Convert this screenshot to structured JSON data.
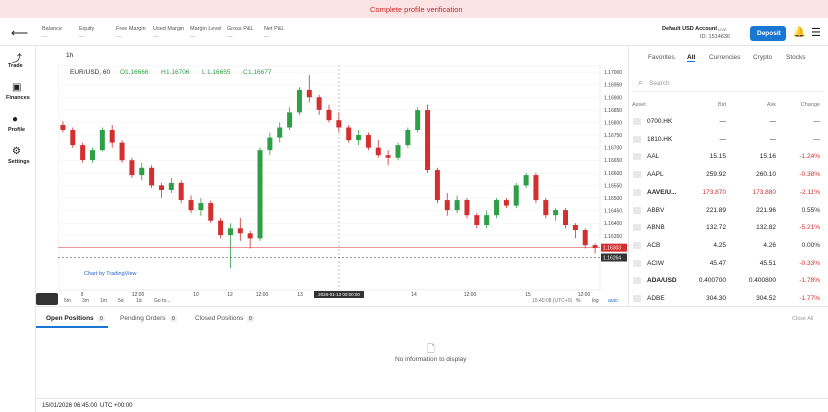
{
  "banner": {
    "text": "Complete profile verification"
  },
  "header": {
    "metrics": [
      {
        "label": "Balance",
        "value": "—"
      },
      {
        "label": "Equity",
        "value": "—"
      },
      {
        "label": "Free Margin",
        "value": "—"
      },
      {
        "label": "Used Margin",
        "value": "—"
      },
      {
        "label": "Margin Level",
        "value": "—"
      },
      {
        "label": "Gross P&L",
        "value": "—"
      },
      {
        "label": "Net P&L",
        "value": "—"
      }
    ],
    "account": {
      "name": "Default USD Account",
      "badge": "LIVE",
      "id": "ID: 1514636"
    },
    "deposit": "Deposit"
  },
  "nav": [
    {
      "label": "Trade"
    },
    {
      "label": "Finances"
    },
    {
      "label": "Profile"
    },
    {
      "label": "Settings"
    }
  ],
  "chart_data": {
    "type": "candlestick",
    "interval": "1h",
    "symbol": "EUR/USD, 60",
    "ohlc_labels": [
      "O",
      "H",
      "L",
      "C"
    ],
    "ohlc": [
      1.16666,
      1.16706,
      1.16655,
      1.16677
    ],
    "up_color": "#2e9e47",
    "down_color": "#d32f2f",
    "ylim": [
      1.16135,
      1.17028
    ],
    "yticks": [
      {
        "value": 1.17,
        "label": "1.17000"
      },
      {
        "value": 1.1695,
        "label": "1.16950"
      },
      {
        "value": 1.169,
        "label": "1.16900"
      },
      {
        "value": 1.1685,
        "label": "1.16850"
      },
      {
        "value": 1.168,
        "label": "1.16800"
      },
      {
        "value": 1.1675,
        "label": "1.16750"
      },
      {
        "value": 1.167,
        "label": "1.16700"
      },
      {
        "value": 1.1665,
        "label": "1.16650"
      },
      {
        "value": 1.166,
        "label": "1.16600"
      },
      {
        "value": 1.1655,
        "label": "1.16550"
      },
      {
        "value": 1.165,
        "label": "1.16500"
      },
      {
        "value": 1.1645,
        "label": "1.16450"
      },
      {
        "value": 1.164,
        "label": "1.16400"
      },
      {
        "value": 1.1635,
        "label": "1.16350"
      }
    ],
    "price_lines": [
      {
        "value": 1.16303,
        "color": "#d32f2f"
      },
      {
        "value": 1.16264,
        "color": "#333333"
      }
    ],
    "candles": [
      [
        1.1679,
        1.16805,
        1.1676,
        1.1677
      ],
      [
        1.1677,
        1.1678,
        1.167,
        1.1671
      ],
      [
        1.1671,
        1.1672,
        1.1664,
        1.16651
      ],
      [
        1.16651,
        1.167,
        1.1664,
        1.1669
      ],
      [
        1.1669,
        1.1678,
        1.16685,
        1.1677
      ],
      [
        1.1677,
        1.1679,
        1.167,
        1.1672
      ],
      [
        1.1672,
        1.1673,
        1.1664,
        1.1665
      ],
      [
        1.1665,
        1.1666,
        1.1658,
        1.16591
      ],
      [
        1.16591,
        1.1664,
        1.1657,
        1.1662
      ],
      [
        1.1662,
        1.1663,
        1.1654,
        1.1655
      ],
      [
        1.1655,
        1.1656,
        1.165,
        1.16532
      ],
      [
        1.16532,
        1.1658,
        1.1652,
        1.1656
      ],
      [
        1.1656,
        1.1657,
        1.1648,
        1.16492
      ],
      [
        1.16492,
        1.1651,
        1.1644,
        1.16452
      ],
      [
        1.16452,
        1.165,
        1.1643,
        1.1648
      ],
      [
        1.1648,
        1.1649,
        1.164,
        1.1641
      ],
      [
        1.1641,
        1.1642,
        1.1634,
        1.16353
      ],
      [
        1.16353,
        1.164,
        1.16222,
        1.1638
      ],
      [
        1.1638,
        1.1642,
        1.1633,
        1.1636
      ],
      [
        1.1636,
        1.1637,
        1.163,
        1.1634
      ],
      [
        1.1634,
        1.167,
        1.1633,
        1.1669
      ],
      [
        1.1669,
        1.1676,
        1.1667,
        1.1674
      ],
      [
        1.1674,
        1.168,
        1.1672,
        1.1678
      ],
      [
        1.1678,
        1.1686,
        1.1677,
        1.1684
      ],
      [
        1.1684,
        1.1694,
        1.1683,
        1.16929
      ],
      [
        1.16929,
        1.16988,
        1.1688,
        1.169
      ],
      [
        1.169,
        1.1691,
        1.1683,
        1.1685
      ],
      [
        1.1685,
        1.1687,
        1.168,
        1.16809
      ],
      [
        1.16809,
        1.1684,
        1.1676,
        1.1678
      ],
      [
        1.1678,
        1.1679,
        1.1672,
        1.1673
      ],
      [
        1.1673,
        1.1677,
        1.1671,
        1.1675
      ],
      [
        1.1675,
        1.1676,
        1.1669,
        1.167
      ],
      [
        1.167,
        1.1673,
        1.1666,
        1.1667
      ],
      [
        1.1667,
        1.1669,
        1.1663,
        1.1666
      ],
      [
        1.1666,
        1.1672,
        1.1665,
        1.1671
      ],
      [
        1.1671,
        1.1678,
        1.167,
        1.1677
      ],
      [
        1.1677,
        1.1686,
        1.1676,
        1.16849
      ],
      [
        1.16849,
        1.1687,
        1.166,
        1.16611
      ],
      [
        1.16611,
        1.1662,
        1.1648,
        1.16492
      ],
      [
        1.16492,
        1.1652,
        1.1643,
        1.16452
      ],
      [
        1.16452,
        1.1651,
        1.1644,
        1.16492
      ],
      [
        1.16492,
        1.165,
        1.1642,
        1.16432
      ],
      [
        1.16432,
        1.1644,
        1.1638,
        1.16393
      ],
      [
        1.16393,
        1.1645,
        1.1638,
        1.16432
      ],
      [
        1.16432,
        1.165,
        1.1642,
        1.16492
      ],
      [
        1.16492,
        1.165,
        1.1646,
        1.1647
      ],
      [
        1.1647,
        1.1656,
        1.1646,
        1.1655
      ],
      [
        1.1655,
        1.166,
        1.1654,
        1.16591
      ],
      [
        1.16591,
        1.166,
        1.1648,
        1.16492
      ],
      [
        1.16492,
        1.165,
        1.1642,
        1.16432
      ],
      [
        1.16432,
        1.1646,
        1.1641,
        1.16452
      ],
      [
        1.16452,
        1.1646,
        1.1638,
        1.16393
      ],
      [
        1.16393,
        1.164,
        1.1634,
        1.16373
      ],
      [
        1.16373,
        1.1638,
        1.163,
        1.16313
      ],
      [
        1.16313,
        1.1632,
        1.1628,
        1.16303
      ]
    ],
    "xticks": [
      "9",
      "12:00",
      "10",
      "12",
      "12:00",
      "13",
      "14",
      "12:00",
      "15",
      "12:00"
    ],
    "crosshair_label": "2026-01-13 00:00:00",
    "watermark": "Chart by TradingView",
    "ranges": [
      "6m",
      "3m",
      "1m",
      "5d",
      "1d",
      "Go to..."
    ],
    "clock": "15:40:08 (UTC+0)",
    "scale_options": [
      "%",
      "log",
      "auto"
    ]
  },
  "watchlist": {
    "tabs": [
      "Favorites",
      "All",
      "Currencies",
      "Crypto",
      "Stocks"
    ],
    "active_tab": "All",
    "search": "Search",
    "columns": [
      "Asset",
      "Bid",
      "Ask",
      "Change"
    ],
    "rows": [
      [
        "0700.HK",
        "—",
        "—",
        "—"
      ],
      [
        "1810.HK",
        "—",
        "—",
        "—"
      ],
      [
        "AAL",
        "15.15",
        "15.16",
        "-1.24%"
      ],
      [
        "AAPL",
        "259.92",
        "260.10",
        "-0.38%"
      ],
      [
        "AAVE/U...",
        "173.870",
        "173.880",
        "-2.11%"
      ],
      [
        "ABBV",
        "221.89",
        "221.96",
        "0.55%"
      ],
      [
        "ABNB",
        "132.72",
        "132.82",
        "-5.21%"
      ],
      [
        "ACB",
        "4.25",
        "4.26",
        "0.00%"
      ],
      [
        "ACIW",
        "45.47",
        "45.51",
        "-0.33%"
      ],
      [
        "ADA/USD",
        "0.400700",
        "0.400800",
        "-1.78%"
      ],
      [
        "ADBE",
        "304.30",
        "304.52",
        "-1.77%"
      ]
    ]
  },
  "positions": {
    "tabs": [
      {
        "label": "Open Positions",
        "count": 0
      },
      {
        "label": "Pending Orders",
        "count": 0
      },
      {
        "label": "Closed Positions",
        "count": 0
      }
    ],
    "close_all": "Close All",
    "empty": "No information to display"
  },
  "footer": {
    "datetime": "15/01/2026 06:45:00",
    "timezone": "UTC +00:00"
  }
}
